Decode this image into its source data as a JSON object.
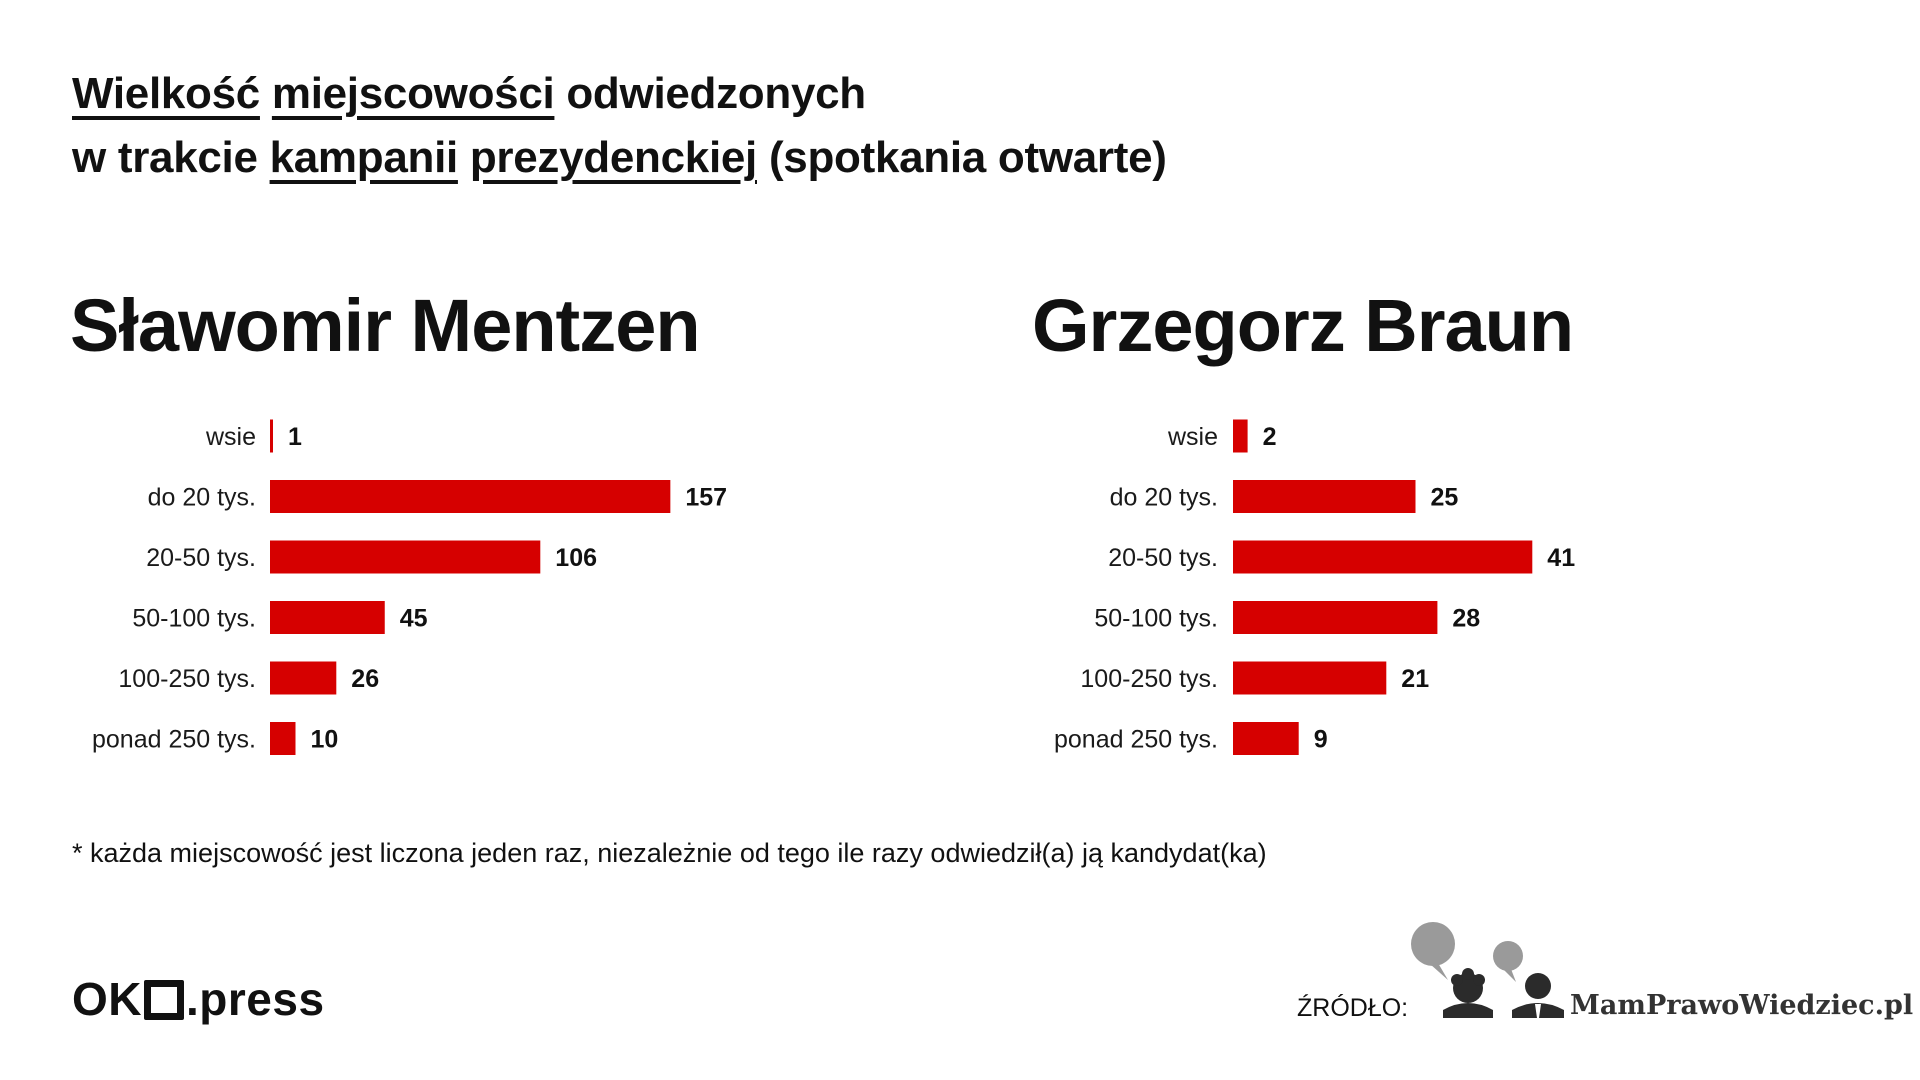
{
  "title": {
    "w1": "Wielkość",
    "w2": "miejscowości",
    "w3": "odwiedzonych",
    "w4": "w trakcie",
    "w5": "kampanii",
    "w6": "prezydenckiej",
    "w7": "(spotkania otwarte)"
  },
  "colors": {
    "bar": "#d60000",
    "text": "#111111",
    "background": "#ffffff"
  },
  "chart_data": [
    {
      "type": "bar",
      "orientation": "horizontal",
      "title": "Sławomir Mentzen",
      "categories": [
        "wsie",
        "do 20 tys.",
        "20-50 tys.",
        "50-100 tys.",
        "100-250 tys.",
        "ponad 250 tys."
      ],
      "values": [
        1,
        157,
        106,
        45,
        26,
        10
      ],
      "data_labels": [
        "1",
        "157",
        "106",
        "45",
        "26",
        "10"
      ],
      "grid": false
    },
    {
      "type": "bar",
      "orientation": "horizontal",
      "title": "Grzegorz Braun",
      "categories": [
        "wsie",
        "do 20 tys.",
        "20-50 tys.",
        "50-100 tys.",
        "100-250 tys.",
        "ponad 250 tys."
      ],
      "values": [
        2,
        25,
        41,
        28,
        21,
        9
      ],
      "data_labels": [
        "2",
        "25",
        "41",
        "28",
        "21",
        "9"
      ],
      "grid": false
    }
  ],
  "footnote": "* każda miejscowość jest liczona jeden raz, niezależnie od tego ile razy odwiedził(a) ją kandydat(ka)",
  "footer": {
    "logo_left": {
      "part1": "OK",
      "part2": ".press"
    },
    "source_label": "ŹRÓDŁO:",
    "source_logo_text": "MamPrawoWiedziec.pl",
    "source_logo_icon": "speech-bubbles-people-icon"
  }
}
